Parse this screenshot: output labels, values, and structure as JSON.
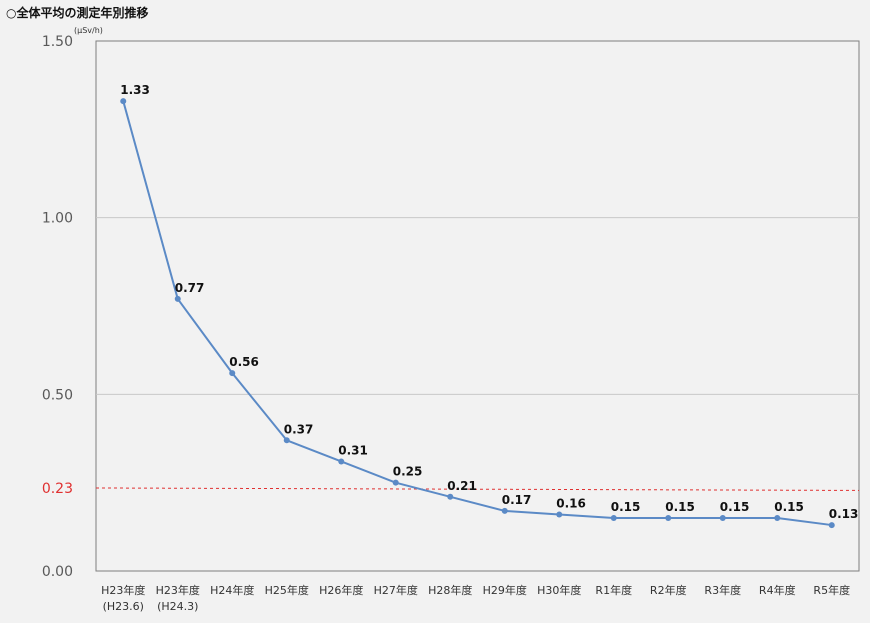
{
  "header": {
    "title": "○全体平均の測定年別推移"
  },
  "chart_data": {
    "type": "line",
    "title": "",
    "xlabel": "",
    "ylabel": "",
    "unit_label": "(μSv/h)",
    "categories": [
      [
        "H23年度",
        "(H23.6)"
      ],
      [
        "H23年度",
        "(H24.3)"
      ],
      [
        "H24年度"
      ],
      [
        "H25年度"
      ],
      [
        "H26年度"
      ],
      [
        "H27年度"
      ],
      [
        "H28年度"
      ],
      [
        "H29年度"
      ],
      [
        "H30年度"
      ],
      [
        "R1年度"
      ],
      [
        "R2年度"
      ],
      [
        "R3年度"
      ],
      [
        "R4年度"
      ],
      [
        "R5年度"
      ]
    ],
    "series": [
      {
        "values": [
          1.33,
          0.77,
          0.56,
          0.37,
          0.31,
          0.25,
          0.21,
          0.17,
          0.16,
          0.15,
          0.15,
          0.15,
          0.15,
          0.13
        ],
        "color": "#5b8ac6"
      }
    ],
    "ylim": [
      0,
      1.5
    ],
    "yticks": [
      "0.00",
      "0.50",
      "1.00",
      "1.50"
    ],
    "reference_line": {
      "label": "0.23",
      "y_start": 0.235,
      "y_end": 0.228,
      "color": "#e03030",
      "style": "dashed"
    },
    "grid": true,
    "legend": "none"
  }
}
